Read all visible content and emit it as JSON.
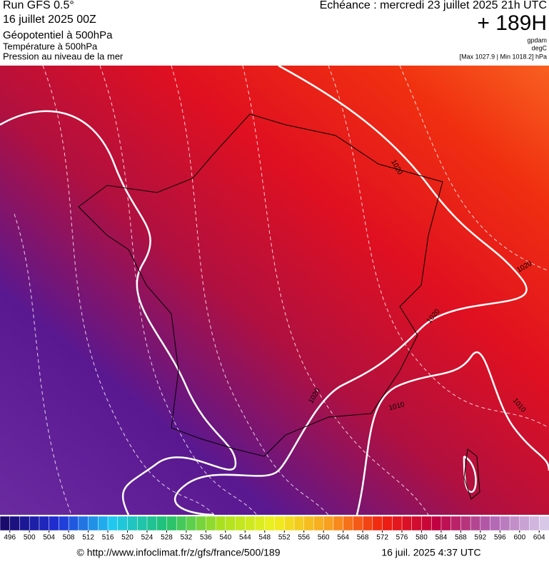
{
  "header": {
    "run": "Run GFS 0.5°",
    "date": "16 juillet 2025 00Z",
    "title": "Géopotentiel à 500hPa",
    "subtitle1": "Température à 500hPa",
    "subtitle2": "Pression au niveau de la mer",
    "valid": "Echéance : mercredi 23 juillet 2025 21h UTC",
    "lead": "+ 189H",
    "unit1": "gpdam",
    "unit2": "degC",
    "range": "[Max 1027.9 | Min 1018.2] hPa"
  },
  "map": {
    "contour_labels": [
      "1020",
      "1020",
      "1020",
      "1020",
      "1010",
      "1010"
    ]
  },
  "colorbar": {
    "ticks": [
      496,
      500,
      504,
      508,
      512,
      516,
      520,
      524,
      528,
      532,
      536,
      540,
      544,
      548,
      552,
      556,
      560,
      564,
      568,
      572,
      576,
      580,
      584,
      588,
      592,
      596,
      600,
      604
    ],
    "stops": [
      "#1a0a6e",
      "#2030d8",
      "#20c8f0",
      "#20c070",
      "#a8e020",
      "#f0f020",
      "#f8a020",
      "#f02010",
      "#c00040",
      "#b060b0",
      "#d8c8e8"
    ]
  },
  "footer": {
    "source": "© http://www.infoclimat.fr/z/gfs/france/500/189",
    "time": "16 juil. 2025  4:37 UTC"
  }
}
